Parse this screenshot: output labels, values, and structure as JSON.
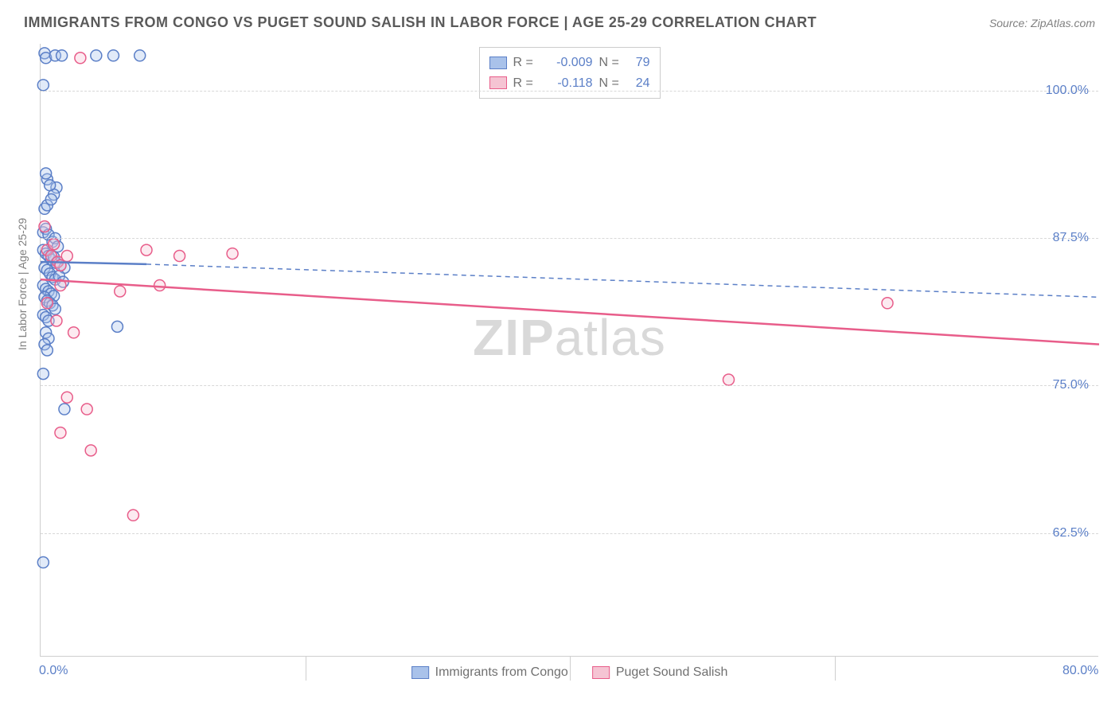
{
  "title": "IMMIGRANTS FROM CONGO VS PUGET SOUND SALISH IN LABOR FORCE | AGE 25-29 CORRELATION CHART",
  "source": "Source: ZipAtlas.com",
  "ylabel": "In Labor Force | Age 25-29",
  "watermark_bold": "ZIP",
  "watermark_rest": "atlas",
  "chart": {
    "type": "scatter",
    "background_color": "#ffffff",
    "grid_color": "#d8d8d8",
    "xlim": [
      0,
      80
    ],
    "ylim": [
      52,
      104
    ],
    "xticks": [
      {
        "v": 0,
        "label": "0.0%"
      },
      {
        "v": 80,
        "label": "80.0%"
      }
    ],
    "xgrid": [
      20,
      40,
      60
    ],
    "yticks": [
      {
        "v": 62.5,
        "label": "62.5%"
      },
      {
        "v": 75.0,
        "label": "75.0%"
      },
      {
        "v": 87.5,
        "label": "87.5%"
      },
      {
        "v": 100.0,
        "label": "100.0%"
      }
    ],
    "marker_radius": 7,
    "series": [
      {
        "name": "Immigrants from Congo",
        "color_fill": "#a9c2ea",
        "color_stroke": "#5b7fc7",
        "r_value": "-0.009",
        "n_value": "79",
        "trend": {
          "solid_start": {
            "x": 0,
            "y": 85.5
          },
          "solid_end": {
            "x": 8,
            "y": 85.3
          },
          "dash_end": {
            "x": 80,
            "y": 82.5
          },
          "width": 2.5
        },
        "points": [
          [
            0.3,
            103.2
          ],
          [
            0.4,
            102.8
          ],
          [
            1.1,
            103.0
          ],
          [
            1.6,
            103.0
          ],
          [
            4.2,
            103.0
          ],
          [
            5.5,
            103.0
          ],
          [
            7.5,
            103.0
          ],
          [
            0.2,
            100.5
          ],
          [
            1.2,
            91.8
          ],
          [
            1.0,
            91.2
          ],
          [
            0.5,
            92.5
          ],
          [
            0.7,
            92.0
          ],
          [
            0.4,
            93.0
          ],
          [
            0.3,
            90.0
          ],
          [
            0.5,
            90.3
          ],
          [
            0.8,
            90.8
          ],
          [
            0.2,
            88.0
          ],
          [
            0.4,
            88.3
          ],
          [
            0.6,
            87.8
          ],
          [
            0.9,
            87.2
          ],
          [
            1.1,
            87.5
          ],
          [
            1.3,
            86.8
          ],
          [
            0.2,
            86.5
          ],
          [
            0.4,
            86.2
          ],
          [
            0.6,
            86.0
          ],
          [
            0.8,
            85.7
          ],
          [
            1.0,
            85.9
          ],
          [
            1.2,
            85.4
          ],
          [
            1.5,
            85.2
          ],
          [
            1.8,
            85.0
          ],
          [
            0.3,
            85.0
          ],
          [
            0.5,
            84.8
          ],
          [
            0.7,
            84.5
          ],
          [
            0.9,
            84.2
          ],
          [
            1.1,
            84.0
          ],
          [
            1.4,
            84.3
          ],
          [
            1.7,
            83.8
          ],
          [
            0.2,
            83.5
          ],
          [
            0.4,
            83.2
          ],
          [
            0.6,
            83.0
          ],
          [
            0.8,
            82.8
          ],
          [
            1.0,
            82.6
          ],
          [
            0.3,
            82.5
          ],
          [
            0.5,
            82.2
          ],
          [
            0.7,
            82.0
          ],
          [
            0.9,
            81.8
          ],
          [
            1.1,
            81.5
          ],
          [
            0.2,
            81.0
          ],
          [
            0.4,
            80.8
          ],
          [
            0.6,
            80.5
          ],
          [
            0.4,
            79.5
          ],
          [
            0.6,
            79.0
          ],
          [
            5.8,
            80.0
          ],
          [
            0.3,
            78.5
          ],
          [
            0.5,
            78.0
          ],
          [
            0.2,
            76.0
          ],
          [
            1.8,
            73.0
          ],
          [
            0.2,
            60.0
          ]
        ]
      },
      {
        "name": "Puget Sound Salish",
        "color_fill": "#f5c4d3",
        "color_stroke": "#e85d8a",
        "r_value": "-0.118",
        "n_value": "24",
        "trend": {
          "solid_start": {
            "x": 0,
            "y": 84.0
          },
          "solid_end": {
            "x": 80,
            "y": 78.5
          },
          "width": 2.5
        },
        "points": [
          [
            3.0,
            102.8
          ],
          [
            0.3,
            88.5
          ],
          [
            0.5,
            86.5
          ],
          [
            0.8,
            86.0
          ],
          [
            1.0,
            87.0
          ],
          [
            1.3,
            85.5
          ],
          [
            1.5,
            85.2
          ],
          [
            2.0,
            86.0
          ],
          [
            8.0,
            86.5
          ],
          [
            10.5,
            86.0
          ],
          [
            14.5,
            86.2
          ],
          [
            1.5,
            83.5
          ],
          [
            6.0,
            83.0
          ],
          [
            9.0,
            83.5
          ],
          [
            0.5,
            82.0
          ],
          [
            1.2,
            80.5
          ],
          [
            2.5,
            79.5
          ],
          [
            52.0,
            75.5
          ],
          [
            64.0,
            82.0
          ],
          [
            2.0,
            74.0
          ],
          [
            3.5,
            73.0
          ],
          [
            1.5,
            71.0
          ],
          [
            3.8,
            69.5
          ],
          [
            7.0,
            64.0
          ]
        ]
      }
    ]
  }
}
